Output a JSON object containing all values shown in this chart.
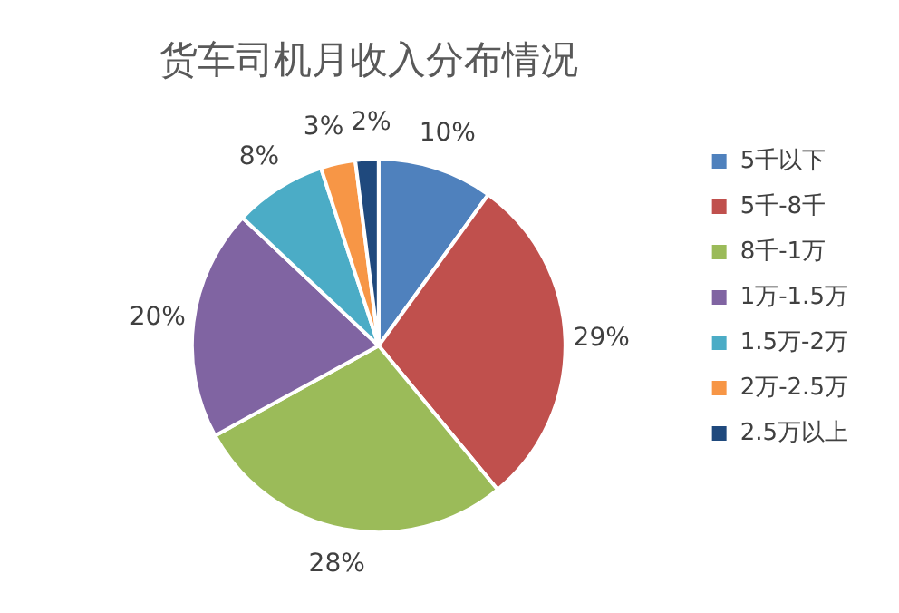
{
  "chart_data": {
    "type": "pie",
    "title": "货车司机月收入分布情况",
    "categories": [
      "5千以下",
      "5千-8千",
      "8千-1万",
      "1万-1.5万",
      "1.5万-2万",
      "2万-2.5万",
      "2.5万以上"
    ],
    "values": [
      10,
      29,
      28,
      20,
      8,
      3,
      2
    ],
    "colors": [
      "#4f81bd",
      "#c0504d",
      "#9bbb59",
      "#8064a2",
      "#4bacc6",
      "#f79646",
      "#1f497d"
    ],
    "value_labels": [
      "10%",
      "29%",
      "28%",
      "20%",
      "8%",
      "3%",
      "2%"
    ],
    "legend": "right"
  }
}
